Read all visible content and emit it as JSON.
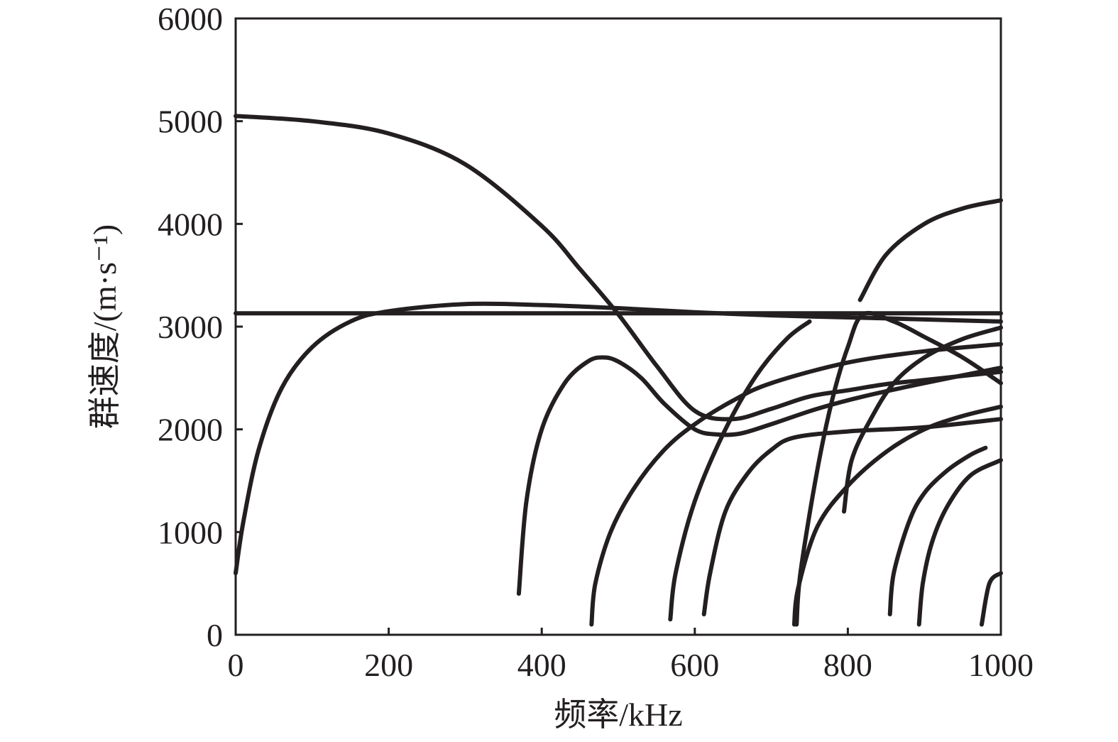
{
  "chart_data": {
    "type": "scatter",
    "xlabel": "频率/kHz",
    "ylabel": "群速度/(m·s⁻¹)",
    "xlim": [
      0,
      1000
    ],
    "ylim": [
      0,
      6000
    ],
    "xticks": [
      "0",
      "200",
      "400",
      "600",
      "800",
      "1000"
    ],
    "yticks": [
      "0",
      "1000",
      "2000",
      "3000",
      "4000",
      "5000",
      "6000"
    ],
    "grid": false,
    "colors": {
      "mark": "#231f20"
    },
    "series": [
      {
        "x": [
          0,
          100,
          200,
          300,
          400,
          450,
          500,
          550,
          600,
          650,
          700,
          750,
          800,
          850,
          900,
          950,
          1000
        ],
        "y": [
          5050,
          5000,
          4880,
          4580,
          3980,
          3560,
          3120,
          2620,
          2180,
          2100,
          2200,
          2320,
          2380,
          2440,
          2480,
          2520,
          2560
        ]
      },
      {
        "x": [
          0,
          200,
          400,
          600,
          800,
          1000
        ],
        "y": [
          3130,
          3130,
          3130,
          3130,
          3130,
          3130
        ]
      },
      {
        "x": [
          0,
          10,
          30,
          60,
          100,
          150,
          200,
          300,
          400,
          500,
          600,
          700,
          800,
          900,
          1000
        ],
        "y": [
          600,
          1100,
          1800,
          2400,
          2800,
          3050,
          3150,
          3220,
          3210,
          3180,
          3140,
          3110,
          3090,
          3070,
          3050
        ]
      },
      {
        "x": [
          370,
          380,
          400,
          430,
          460,
          480,
          500,
          530,
          560,
          600,
          630,
          660,
          700,
          760,
          820,
          900,
          1000
        ],
        "y": [
          400,
          1300,
          2000,
          2450,
          2660,
          2700,
          2660,
          2500,
          2250,
          2000,
          1950,
          1960,
          2050,
          2200,
          2320,
          2450,
          2600
        ]
      },
      {
        "x": [
          465,
          470,
          490,
          520,
          560,
          600,
          650,
          700,
          800,
          900,
          1000
        ],
        "y": [
          100,
          500,
          1000,
          1420,
          1800,
          2050,
          2280,
          2450,
          2650,
          2760,
          2830
        ]
      },
      {
        "x": [
          568,
          575,
          600,
          640,
          680,
          720,
          750
        ],
        "y": [
          150,
          600,
          1300,
          2000,
          2520,
          2880,
          3050
        ]
      },
      {
        "x": [
          612,
          620,
          640,
          670,
          700,
          730,
          800,
          900,
          1000
        ],
        "y": [
          200,
          600,
          1200,
          1580,
          1800,
          1920,
          1980,
          2020,
          2100
        ]
      },
      {
        "x": [
          733,
          738,
          760,
          780,
          800,
          820,
          860,
          900,
          950,
          1000
        ],
        "y": [
          100,
          600,
          1600,
          2300,
          2800,
          3120,
          3050,
          2900,
          2700,
          2450
        ]
      },
      {
        "x": [
          730,
          735,
          760,
          800,
          850,
          900,
          950,
          1000
        ],
        "y": [
          100,
          450,
          1050,
          1450,
          1780,
          2000,
          2130,
          2220
        ]
      },
      {
        "x": [
          795,
          805,
          830,
          860,
          900,
          950,
          1000
        ],
        "y": [
          1200,
          1700,
          2100,
          2450,
          2700,
          2880,
          2990
        ]
      },
      {
        "x": [
          816,
          850,
          900,
          950,
          1000
        ],
        "y": [
          3260,
          3700,
          4000,
          4150,
          4230
        ]
      },
      {
        "x": [
          855,
          860,
          880,
          900,
          930,
          960,
          980
        ],
        "y": [
          200,
          600,
          1100,
          1380,
          1600,
          1750,
          1820
        ]
      },
      {
        "x": [
          893,
          898,
          910,
          930,
          960,
          1000
        ],
        "y": [
          100,
          500,
          900,
          1250,
          1550,
          1700
        ]
      },
      {
        "x": [
          975,
          985,
          1000
        ],
        "y": [
          100,
          500,
          600
        ]
      }
    ]
  }
}
